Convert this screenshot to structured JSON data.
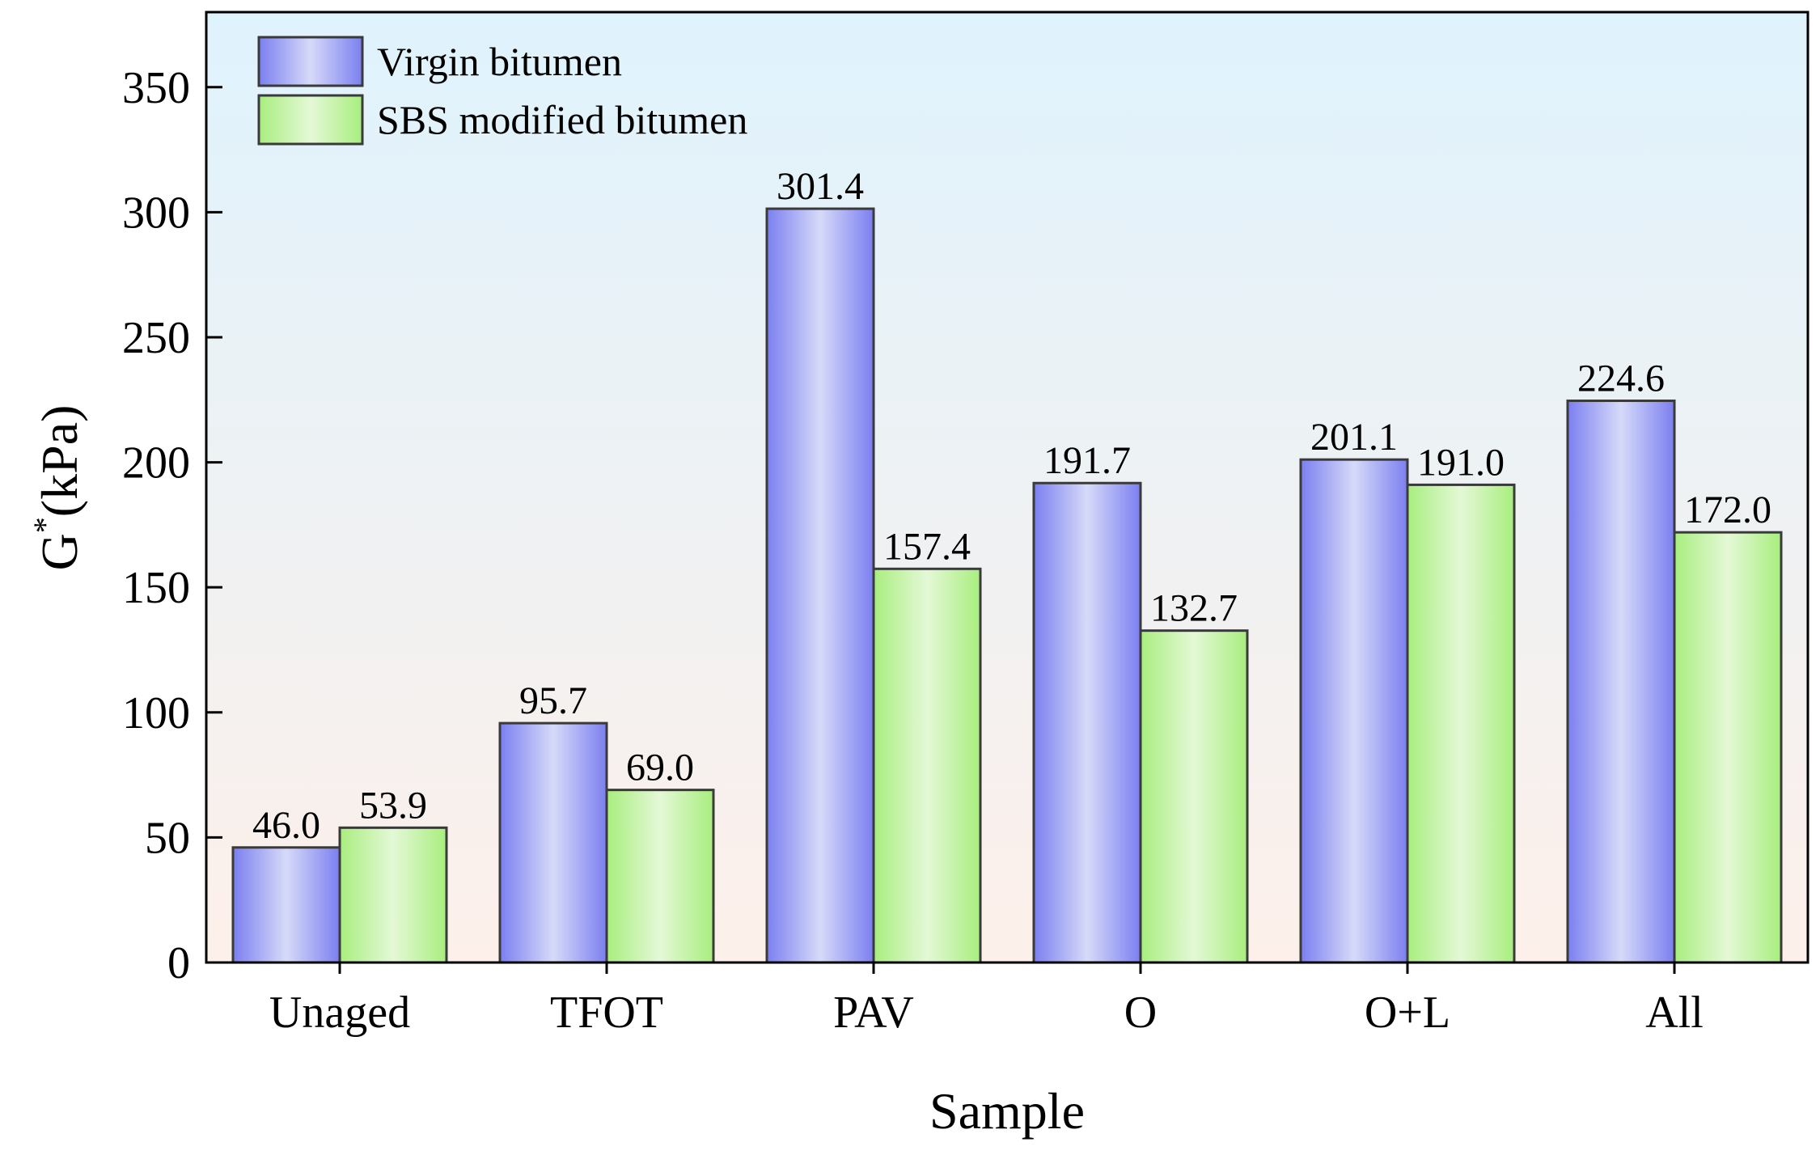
{
  "chart_data": {
    "type": "bar",
    "title": "",
    "xlabel": "Sample",
    "ylabel_main": "G",
    "ylabel_sup": "*",
    "ylabel_unit": "(kPa)",
    "ylim": [
      0,
      380
    ],
    "yticks": [
      0,
      50,
      100,
      150,
      200,
      250,
      300,
      350
    ],
    "categories": [
      "Unaged",
      "TFOT",
      "PAV",
      "O",
      "O+L",
      "All"
    ],
    "series": [
      {
        "name": "Virgin bitumen",
        "values": [
          46.0,
          95.7,
          301.4,
          191.7,
          201.1,
          224.6
        ],
        "labels": [
          "46.0",
          "95.7",
          "301.4",
          "191.7",
          "201.1",
          "224.6"
        ],
        "color_edge": "#7b7ff0",
        "color_mid": "#d6daf8"
      },
      {
        "name": "SBS modified bitumen",
        "values": [
          53.9,
          69.0,
          157.4,
          132.7,
          191.0,
          172.0
        ],
        "labels": [
          "53.9",
          "69.0",
          "157.4",
          "132.7",
          "191.0",
          "172.0"
        ],
        "color_edge": "#a8ee7e",
        "color_mid": "#e4f8d6"
      }
    ],
    "legend_position": "top-left",
    "background_top": "#dff3fd",
    "background_bottom": "#fdf0ea"
  }
}
